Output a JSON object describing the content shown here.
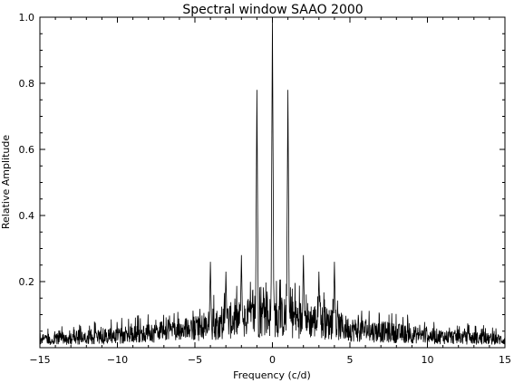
{
  "chart_data": {
    "type": "line",
    "title": "Spectral window SAAO 2000",
    "xlabel": "Frequency (c/d)",
    "ylabel": "Relative Amplitude",
    "xlim": [
      -15,
      15
    ],
    "ylim": [
      0.0,
      1.0
    ],
    "x_ticks": [
      -15,
      -10,
      -5,
      0,
      5,
      10,
      15
    ],
    "x_tick_labels": [
      "−15",
      "−10",
      "−5",
      "0",
      "5",
      "10",
      "15"
    ],
    "y_ticks": [
      0.2,
      0.4,
      0.6,
      0.8,
      1.0
    ],
    "y_tick_labels": [
      "0.2",
      "0.4",
      "0.6",
      "0.8",
      "1.0"
    ],
    "grid": false,
    "line_color": "#000000",
    "peaks": {
      "frequency": [
        -4.0,
        -3.0,
        -2.0,
        -1.0,
        0.0,
        1.0,
        2.0,
        3.0,
        4.0
      ],
      "amplitude": [
        0.26,
        0.23,
        0.28,
        0.78,
        1.0,
        0.78,
        0.28,
        0.23,
        0.26
      ]
    },
    "noise_floor": {
      "frequency": [
        -15,
        -10,
        -5,
        -3,
        0,
        3,
        5,
        10,
        15
      ],
      "typical_amplitude": [
        0.03,
        0.045,
        0.07,
        0.1,
        0.12,
        0.1,
        0.07,
        0.045,
        0.03
      ],
      "max_amplitude": [
        0.06,
        0.09,
        0.13,
        0.18,
        0.22,
        0.18,
        0.13,
        0.09,
        0.06
      ]
    }
  }
}
